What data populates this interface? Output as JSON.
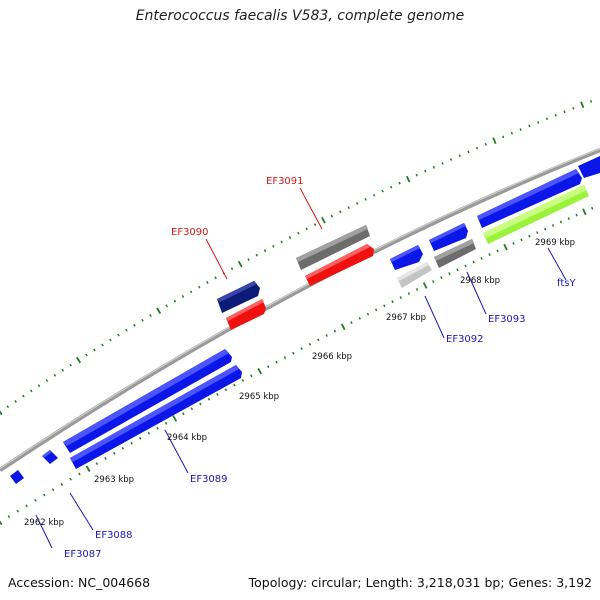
{
  "title": "Enterococcus faecalis V583, complete genome",
  "footer": {
    "accession": "Accession: NC_004668",
    "topology": "Topology: circular; Length: 3,218,031 bp; Genes: 3,192"
  },
  "colors": {
    "backbone": "#9a9a9a",
    "ticks": "#1e7e1e",
    "gene_blue": "#0a17e8",
    "gene_navy": "#0c1a78",
    "gene_gray": "#6c6c6c",
    "gene_lightgray": "#c4c4c4",
    "gene_red": "#f01010",
    "gene_green": "#9af23a",
    "label_blue": "#1a1ab8",
    "label_red": "#d81818"
  },
  "scale_labels": [
    "2962 kbp",
    "2963 kbp",
    "2964 kbp",
    "2965 kbp",
    "2966 kbp",
    "2967 kbp",
    "2968 kbp",
    "2969 kbp"
  ],
  "genes": [
    {
      "id": "EF3087",
      "label": "EF3087",
      "label_color": "blue",
      "color": "gene_blue"
    },
    {
      "id": "EF3088",
      "label": "EF3088",
      "label_color": "blue",
      "color": "gene_blue"
    },
    {
      "id": "EF3089",
      "label": "EF3089",
      "label_color": "blue",
      "color": "gene_blue"
    },
    {
      "id": "EF3090",
      "label": "EF3090",
      "label_color": "red",
      "color": "gene_navy"
    },
    {
      "id": "EF3091",
      "label": "EF3091",
      "label_color": "red",
      "color": "gene_gray"
    },
    {
      "id": "EF3092",
      "label": "EF3092",
      "label_color": "blue",
      "color": "gene_lightgray"
    },
    {
      "id": "EF3093",
      "label": "EF3093",
      "label_color": "blue",
      "color": "gene_gray"
    },
    {
      "id": "ftsY",
      "label": "ftsY",
      "label_color": "blue",
      "color": "gene_green"
    }
  ]
}
